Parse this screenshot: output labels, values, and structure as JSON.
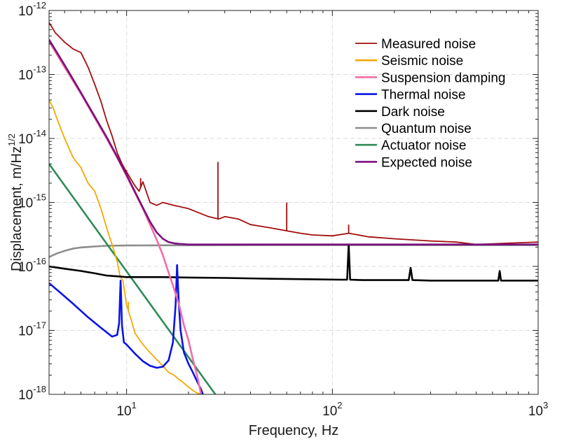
{
  "chart_data": {
    "type": "line",
    "xscale": "log",
    "yscale": "log",
    "xlim": [
      4.2,
      1000
    ],
    "ylim": [
      1e-18,
      1e-12
    ],
    "xlabel": "Frequency, Hz",
    "ylabel": "Displacement, m/Hz",
    "ylabel_exponent": "1/2",
    "grid": true,
    "legend_position": "top-right",
    "x_ticks": [
      {
        "value": 10,
        "base": "10",
        "exp": "1"
      },
      {
        "value": 100,
        "base": "10",
        "exp": "2"
      },
      {
        "value": 1000,
        "base": "10",
        "exp": "3"
      }
    ],
    "y_ticks": [
      {
        "value": 1e-12,
        "base": "10",
        "exp": "-12"
      },
      {
        "value": 1e-13,
        "base": "10",
        "exp": "-13"
      },
      {
        "value": 1e-14,
        "base": "10",
        "exp": "-14"
      },
      {
        "value": 1e-15,
        "base": "10",
        "exp": "-15"
      },
      {
        "value": 1e-16,
        "base": "10",
        "exp": "-16"
      },
      {
        "value": 1e-17,
        "base": "10",
        "exp": "-17"
      },
      {
        "value": 1e-18,
        "base": "10",
        "exp": "-18"
      }
    ],
    "series": [
      {
        "name": "Measured noise",
        "color": "#a30d0d",
        "x": [
          4.2,
          4.5,
          5,
          5.5,
          6,
          6.5,
          7,
          7.5,
          8,
          8.5,
          9,
          9.5,
          10,
          10.5,
          11,
          11.5,
          12,
          13,
          14,
          15,
          17,
          20,
          25,
          28,
          30,
          35,
          40,
          50,
          60,
          70,
          80,
          100,
          120,
          150,
          200,
          300,
          400,
          500,
          700,
          1000
        ],
        "y": [
          6.5e-13,
          4.5e-13,
          3.2e-13,
          2.5e-13,
          2.2e-13,
          1.3e-13,
          7e-14,
          3.8e-14,
          1.9e-14,
          1.1e-14,
          6e-15,
          4e-15,
          3e-15,
          2.3e-15,
          1.8e-15,
          1.5e-15,
          2.1e-15,
          1e-15,
          9e-16,
          1e-15,
          9e-16,
          8e-16,
          6e-16,
          5.5e-16,
          6e-16,
          5.5e-16,
          4.5e-16,
          4e-16,
          3.6e-16,
          3.3e-16,
          3.1e-16,
          3e-16,
          3.3e-16,
          2.9e-16,
          2.7e-16,
          2.5e-16,
          2.4e-16,
          2.2e-16,
          2.3e-16,
          2.4e-16
        ],
        "peaks": [
          {
            "x": 10,
            "y": 3.2e-15
          },
          {
            "x": 11.7,
            "y": 2.4e-15
          },
          {
            "x": 27.8,
            "y": 4.3e-15
          },
          {
            "x": 60,
            "y": 1e-15
          },
          {
            "x": 120,
            "y": 4.5e-16
          }
        ]
      },
      {
        "name": "Seismic noise",
        "color": "#f5a800",
        "x": [
          4.2,
          4.4,
          4.6,
          5,
          5.5,
          6,
          6.5,
          7,
          7.5,
          8,
          8.5,
          9,
          9.3,
          9.6,
          10,
          10.5,
          11,
          12,
          13,
          14,
          15,
          16,
          17,
          18,
          19,
          20,
          21,
          22,
          23
        ],
        "y": [
          4e-14,
          3e-14,
          2e-14,
          1e-14,
          5e-15,
          3.5e-15,
          2e-15,
          1.5e-15,
          8e-16,
          4e-16,
          2.2e-16,
          1.2e-16,
          7e-17,
          6e-17,
          2.5e-17,
          1.5e-17,
          9e-18,
          6e-18,
          4.5e-18,
          3.5e-18,
          2.8e-18,
          2.2e-18,
          2e-18,
          1.7e-18,
          1.5e-18,
          1.3e-18,
          1.15e-18,
          1.05e-18,
          1e-18
        ],
        "peaks": [
          {
            "x": 9.6,
            "y": 6e-17
          },
          {
            "x": 10.2,
            "y": 2.8e-17
          },
          {
            "x": 25,
            "y": 1.3e-18
          },
          {
            "x": 28,
            "y": 1.4e-18
          },
          {
            "x": 30,
            "y": 1.25e-18
          }
        ]
      },
      {
        "name": "Suspension damping",
        "color": "#f56ba6",
        "x": [
          4.2,
          5,
          6,
          7,
          8,
          9,
          10,
          11,
          12,
          13,
          14,
          15,
          16,
          17,
          18,
          19,
          20,
          21,
          22,
          23
        ],
        "y": [
          3.3e-13,
          1.3e-13,
          5e-14,
          2.1e-14,
          1e-14,
          5e-15,
          2.6e-15,
          1.4e-15,
          8e-16,
          4.5e-16,
          2.6e-16,
          1.5e-16,
          8e-17,
          4.5e-17,
          2.5e-17,
          1.2e-17,
          7e-18,
          3.5e-18,
          2e-18,
          1e-18
        ]
      },
      {
        "name": "Thermal noise",
        "color": "#0a14e6",
        "x": [
          4.2,
          4.8,
          5.5,
          6.5,
          7.5,
          8.5,
          9.0,
          9.2,
          9.35,
          9.5,
          9.7,
          10,
          11,
          12,
          13,
          14,
          15,
          16,
          16.8,
          17.3,
          17.6,
          17.9,
          18.3,
          19,
          20,
          21,
          22,
          23,
          23.5
        ],
        "y": [
          5.5e-17,
          3.8e-17,
          2.6e-17,
          1.6e-17,
          1.1e-17,
          8e-18,
          8.5e-18,
          1.3e-17,
          6e-17,
          1.2e-17,
          6.5e-18,
          6e-18,
          4.3e-18,
          3.3e-18,
          2.8e-18,
          2.6e-18,
          2.7e-18,
          3.4e-18,
          6.5e-18,
          2.5e-17,
          1.05e-16,
          3e-17,
          1e-17,
          4.5e-18,
          3e-18,
          2.2e-18,
          1.6e-18,
          1.2e-18,
          1e-18
        ]
      },
      {
        "name": "Dark noise",
        "color": "#000000",
        "x": [
          4.2,
          5,
          6,
          7,
          8,
          9,
          10,
          12,
          15,
          20,
          30,
          50,
          80,
          110,
          118,
          120,
          122,
          140,
          200,
          235,
          240,
          245,
          300,
          500,
          640,
          650,
          660,
          800,
          1000
        ],
        "y": [
          1e-16,
          9.2e-17,
          8.5e-17,
          7.8e-17,
          7.2e-17,
          7e-17,
          6.8e-17,
          6.8e-17,
          6.8e-17,
          6.7e-17,
          6.6e-17,
          6.4e-17,
          6.3e-17,
          6.2e-17,
          6.2e-17,
          2.2e-16,
          6.2e-17,
          6.1e-17,
          6.1e-17,
          6.1e-17,
          9.5e-17,
          6.1e-17,
          6e-17,
          6e-17,
          6e-17,
          8.5e-17,
          6e-17,
          6e-17,
          6e-17
        ]
      },
      {
        "name": "Quantum noise",
        "color": "#8c8c8c",
        "x": [
          4.2,
          4.6,
          5,
          5.5,
          6,
          7,
          8,
          10,
          12,
          15,
          20,
          50,
          100,
          1000
        ],
        "y": [
          1.4e-16,
          1.6e-16,
          1.75e-16,
          1.9e-16,
          1.98e-16,
          2.05e-16,
          2.1e-16,
          2.12e-16,
          2.13e-16,
          2.14e-16,
          2.14e-16,
          2.15e-16,
          2.15e-16,
          2.15e-16
        ]
      },
      {
        "name": "Actuator noise",
        "color": "#2e8b57",
        "x": [
          4.2,
          27
        ],
        "y": [
          4e-15,
          1e-18
        ]
      },
      {
        "name": "Expected noise",
        "color": "#7a117f",
        "x": [
          4.2,
          5,
          6,
          7,
          8,
          9,
          10,
          11,
          12,
          13,
          14,
          15,
          16,
          17,
          18,
          20,
          25,
          50,
          100,
          1000
        ],
        "y": [
          3.5e-13,
          1.4e-13,
          5.2e-14,
          2.2e-14,
          1.05e-14,
          5.2e-15,
          2.7e-15,
          1.45e-15,
          8.3e-16,
          5e-16,
          3.4e-16,
          2.7e-16,
          2.4e-16,
          2.3e-16,
          2.25e-16,
          2.2e-16,
          2.2e-16,
          2.2e-16,
          2.2e-16,
          2.2e-16
        ]
      }
    ]
  }
}
